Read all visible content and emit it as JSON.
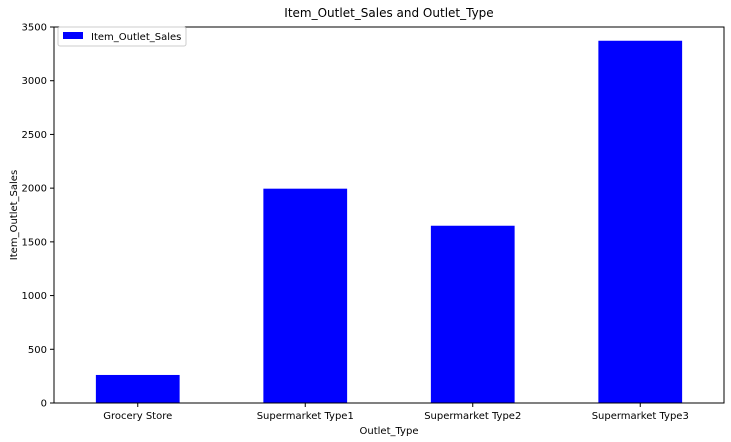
{
  "chart_data": {
    "type": "bar",
    "title": "Item_Outlet_Sales and Outlet_Type",
    "xlabel": "Outlet_Type",
    "ylabel": "Item_Outlet_Sales",
    "categories": [
      "Grocery Store",
      "Supermarket Type1",
      "Supermarket Type2",
      "Supermarket Type3"
    ],
    "series": [
      {
        "name": "Item_Outlet_Sales",
        "values": [
          261,
          1995,
          1650,
          3372
        ]
      }
    ],
    "ylim": [
      0,
      3500
    ],
    "yticks": [
      0,
      500,
      1000,
      1500,
      2000,
      2500,
      3000,
      3500
    ],
    "bar_color": "#0000ff",
    "legend": {
      "position": "top-left"
    },
    "grid": false
  }
}
